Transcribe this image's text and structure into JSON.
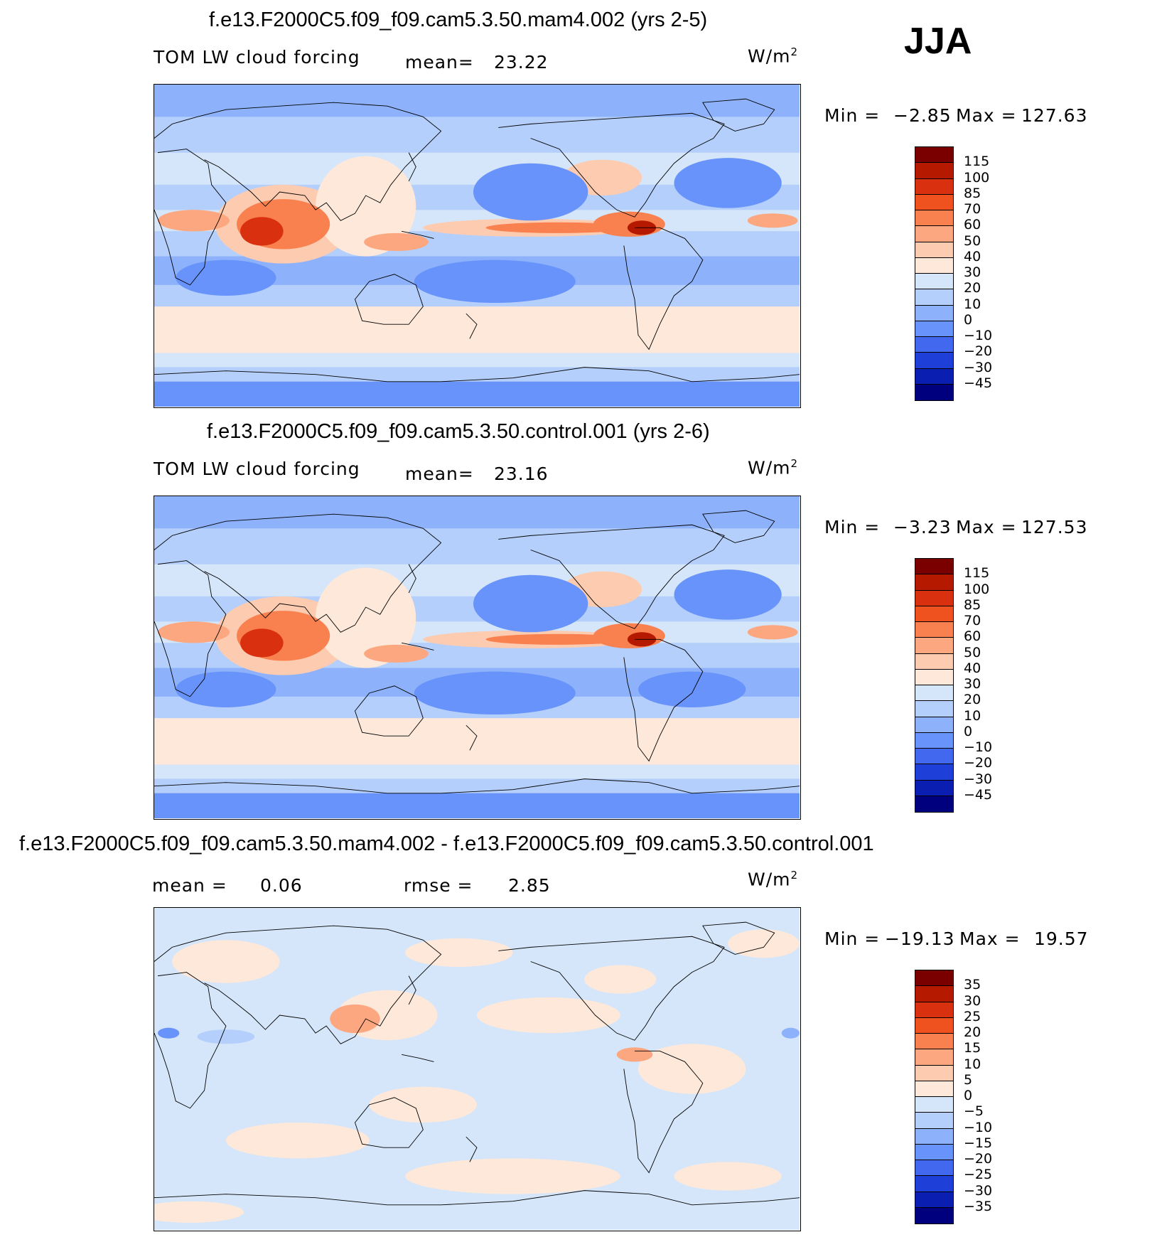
{
  "season": "JJA",
  "panels": [
    {
      "title": "f.e13.F2000C5.f09_f09.cam5.3.50.mam4.002 (yrs 2-5)",
      "variable": "TOM LW cloud forcing",
      "stat1_label": "mean=",
      "stat1_value": "23.22",
      "stat2_label": "",
      "stat2_value": "",
      "units": "W/m",
      "units_exp": "2",
      "min_label": "Min =",
      "min_value": "−2.85",
      "max_label": "Max =",
      "max_value": "127.63",
      "colorbar_levels": [
        "115",
        "100",
        "85",
        "70",
        "60",
        "50",
        "40",
        "30",
        "20",
        "10",
        "0",
        "−10",
        "−20",
        "−30",
        "−45"
      ]
    },
    {
      "title": "f.e13.F2000C5.f09_f09.cam5.3.50.control.001 (yrs 2-6)",
      "variable": "TOM LW cloud forcing",
      "stat1_label": "mean=",
      "stat1_value": "23.16",
      "stat2_label": "",
      "stat2_value": "",
      "units": "W/m",
      "units_exp": "2",
      "min_label": "Min =",
      "min_value": "−3.23",
      "max_label": "Max =",
      "max_value": "127.53",
      "colorbar_levels": [
        "115",
        "100",
        "85",
        "70",
        "60",
        "50",
        "40",
        "30",
        "20",
        "10",
        "0",
        "−10",
        "−20",
        "−30",
        "−45"
      ]
    },
    {
      "title": "f.e13.F2000C5.f09_f09.cam5.3.50.mam4.002 - f.e13.F2000C5.f09_f09.cam5.3.50.control.001",
      "variable": "",
      "stat1_label": "mean =",
      "stat1_value": "0.06",
      "stat2_label": "rmse =",
      "stat2_value": "2.85",
      "units": "W/m",
      "units_exp": "2",
      "min_label": "Min =",
      "min_value": "−19.13",
      "max_label": "Max =",
      "max_value": "19.57",
      "colorbar_levels": [
        "35",
        "30",
        "25",
        "20",
        "15",
        "10",
        "5",
        "0",
        "−5",
        "−10",
        "−15",
        "−20",
        "−25",
        "−30",
        "−35"
      ]
    }
  ],
  "colorbar_colors": [
    "#7a0000",
    "#b51a00",
    "#d93010",
    "#f0521f",
    "#f9804f",
    "#fca77f",
    "#fdcbb0",
    "#fde8da",
    "#d5e6fa",
    "#b4cffb",
    "#8db2fb",
    "#6893fa",
    "#4268f0",
    "#1f3fd9",
    "#0a1fb2",
    "#00007f"
  ]
}
